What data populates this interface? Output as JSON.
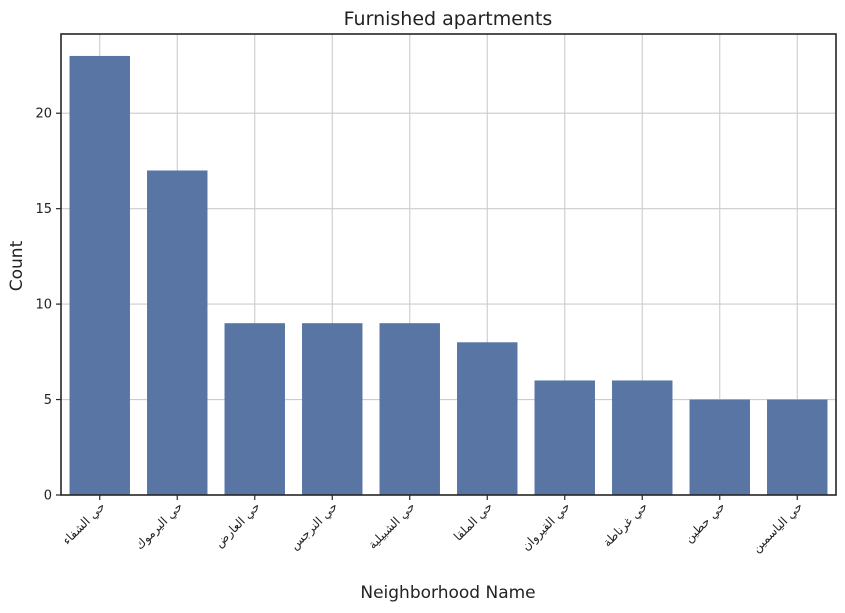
{
  "chart_data": {
    "type": "bar",
    "title": "Furnished apartments",
    "xlabel": "Neighborhood Name",
    "ylabel": "Count",
    "categories": [
      "حي الشفاء",
      "حي اليرموك",
      "حي العارض",
      "حي النرجس",
      "حي الشبيلية",
      "حي الملقا",
      "حي القيروان",
      "حي غرناطة",
      "حي حطين",
      "حي الياسمين"
    ],
    "values": [
      23,
      17,
      9,
      9,
      9,
      8,
      6,
      6,
      5,
      5
    ],
    "ylim": [
      0,
      24.15
    ],
    "yticks": [
      0,
      5,
      10,
      15,
      20
    ],
    "grid": true,
    "bar_color": "#5875a4",
    "grid_color": "#cccccc",
    "axis_color": "#262626"
  }
}
